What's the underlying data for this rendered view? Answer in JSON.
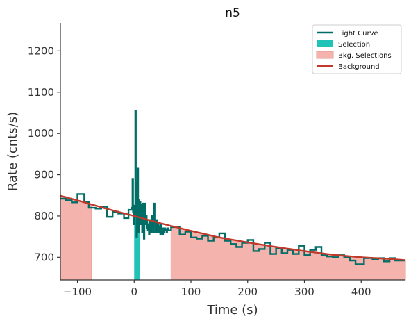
{
  "chart_data": {
    "type": "line",
    "title": "n5",
    "xlabel": "Time (s)",
    "ylabel": "Rate (cnts/s)",
    "xlim": [
      -130,
      478
    ],
    "ylim": [
      645,
      1268
    ],
    "xticks": [
      -100,
      0,
      100,
      200,
      300,
      400
    ],
    "yticks": [
      700,
      800,
      900,
      1000,
      1100,
      1200
    ],
    "legend": {
      "placement": "top-right",
      "entries": [
        {
          "label": "Light Curve",
          "kind": "line",
          "color": "#006d66"
        },
        {
          "label": "Selection",
          "kind": "patch",
          "color": "#20c3b5"
        },
        {
          "label": "Bkg. Selections",
          "kind": "patch",
          "color": "#f4b4ad"
        },
        {
          "label": "Background",
          "kind": "line",
          "color": "#c0392b"
        }
      ]
    },
    "selection": {
      "x_range": [
        0,
        10
      ],
      "color": "#20c3b5"
    },
    "bkg_selections": [
      {
        "x_range": [
          -130,
          -75
        ]
      },
      {
        "x_range": [
          65,
          478
        ]
      }
    ],
    "background_fit": {
      "color": "#c0392b",
      "x": [
        -130,
        -100,
        -50,
        0,
        50,
        100,
        150,
        200,
        250,
        300,
        350,
        400,
        450,
        478
      ],
      "y": [
        849,
        838,
        818,
        800,
        781,
        764,
        748,
        736,
        725,
        715,
        706,
        700,
        696,
        693
      ]
    },
    "light_curve": {
      "color": "#006d66",
      "coarse_bins": [
        {
          "x0": -130,
          "x1": -120,
          "y": 842
        },
        {
          "x0": -120,
          "x1": -110,
          "y": 838
        },
        {
          "x0": -110,
          "x1": -100,
          "y": 833
        },
        {
          "x0": -100,
          "x1": -88,
          "y": 853
        },
        {
          "x0": -88,
          "x1": -80,
          "y": 834
        },
        {
          "x0": -80,
          "x1": -68,
          "y": 820
        },
        {
          "x0": -68,
          "x1": -58,
          "y": 818
        },
        {
          "x0": -58,
          "x1": -48,
          "y": 823
        },
        {
          "x0": -48,
          "x1": -38,
          "y": 798
        },
        {
          "x0": -38,
          "x1": -28,
          "y": 810
        },
        {
          "x0": -28,
          "x1": -18,
          "y": 806
        },
        {
          "x0": -18,
          "x1": -10,
          "y": 795
        },
        {
          "x0": -10,
          "x1": -5,
          "y": 815
        },
        {
          "x0": 60,
          "x1": 65,
          "y": 765
        },
        {
          "x0": 65,
          "x1": 80,
          "y": 773
        },
        {
          "x0": 80,
          "x1": 90,
          "y": 755
        },
        {
          "x0": 90,
          "x1": 100,
          "y": 762
        },
        {
          "x0": 100,
          "x1": 110,
          "y": 748
        },
        {
          "x0": 110,
          "x1": 120,
          "y": 745
        },
        {
          "x0": 120,
          "x1": 130,
          "y": 752
        },
        {
          "x0": 130,
          "x1": 140,
          "y": 740
        },
        {
          "x0": 140,
          "x1": 150,
          "y": 748
        },
        {
          "x0": 150,
          "x1": 160,
          "y": 758
        },
        {
          "x0": 160,
          "x1": 170,
          "y": 740
        },
        {
          "x0": 170,
          "x1": 180,
          "y": 732
        },
        {
          "x0": 180,
          "x1": 190,
          "y": 725
        },
        {
          "x0": 190,
          "x1": 200,
          "y": 735
        },
        {
          "x0": 200,
          "x1": 210,
          "y": 742
        },
        {
          "x0": 210,
          "x1": 220,
          "y": 715
        },
        {
          "x0": 220,
          "x1": 230,
          "y": 720
        },
        {
          "x0": 230,
          "x1": 240,
          "y": 735
        },
        {
          "x0": 240,
          "x1": 250,
          "y": 708
        },
        {
          "x0": 250,
          "x1": 260,
          "y": 722
        },
        {
          "x0": 260,
          "x1": 270,
          "y": 710
        },
        {
          "x0": 270,
          "x1": 280,
          "y": 718
        },
        {
          "x0": 280,
          "x1": 290,
          "y": 708
        },
        {
          "x0": 290,
          "x1": 300,
          "y": 728
        },
        {
          "x0": 300,
          "x1": 310,
          "y": 705
        },
        {
          "x0": 310,
          "x1": 320,
          "y": 718
        },
        {
          "x0": 320,
          "x1": 330,
          "y": 725
        },
        {
          "x0": 330,
          "x1": 340,
          "y": 705
        },
        {
          "x0": 340,
          "x1": 350,
          "y": 702
        },
        {
          "x0": 350,
          "x1": 360,
          "y": 700
        },
        {
          "x0": 360,
          "x1": 370,
          "y": 705
        },
        {
          "x0": 370,
          "x1": 380,
          "y": 700
        },
        {
          "x0": 380,
          "x1": 390,
          "y": 692
        },
        {
          "x0": 390,
          "x1": 405,
          "y": 683
        },
        {
          "x0": 405,
          "x1": 420,
          "y": 698
        },
        {
          "x0": 420,
          "x1": 430,
          "y": 695
        },
        {
          "x0": 430,
          "x1": 440,
          "y": 698
        },
        {
          "x0": 440,
          "x1": 450,
          "y": 690
        },
        {
          "x0": 450,
          "x1": 460,
          "y": 698
        },
        {
          "x0": 460,
          "x1": 478,
          "y": 692
        }
      ],
      "fine_segment": {
        "x_start": -5,
        "dx": 1,
        "y": [
          815,
          820,
          890,
          810,
          780,
          825,
          800,
          1055,
          880,
          750,
          850,
          915,
          760,
          838,
          800,
          835,
          780,
          828,
          815,
          760,
          830,
          820,
          745,
          830,
          810,
          780,
          800,
          790,
          770,
          765,
          780,
          755,
          790,
          770,
          760,
          780,
          800,
          775,
          760,
          790,
          830,
          785,
          760,
          770,
          790,
          765,
          760,
          780,
          760,
          775,
          770,
          755,
          780,
          760,
          770,
          755,
          770,
          760,
          765,
          770,
          768,
          765,
          760,
          765,
          770
        ]
      }
    }
  }
}
